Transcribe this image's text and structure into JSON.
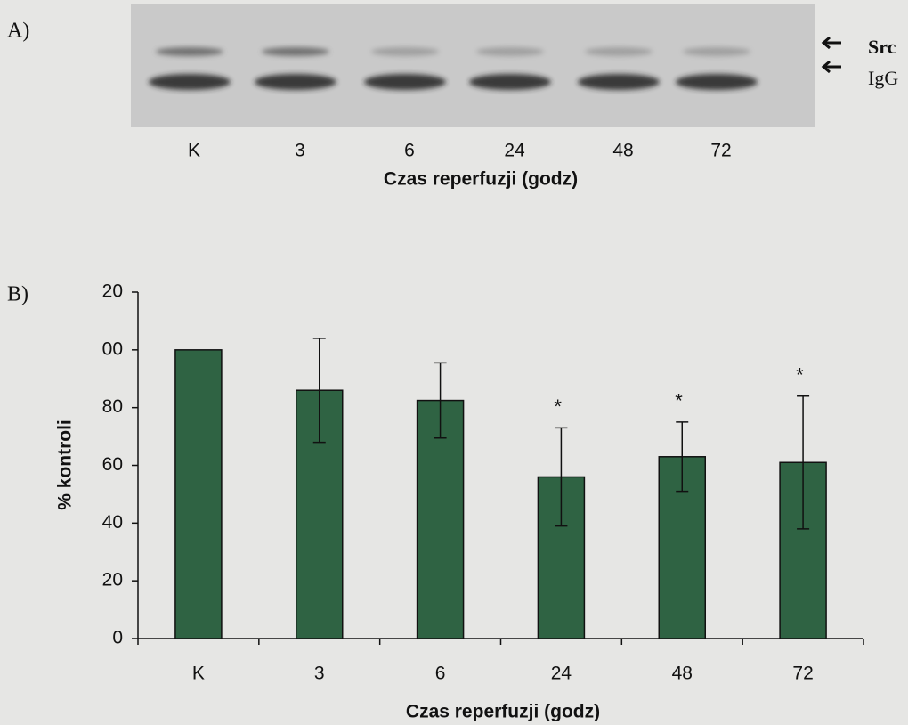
{
  "panel_a": {
    "label": "A)",
    "lanes": [
      "K",
      "3",
      "6",
      "24",
      "48",
      "72"
    ],
    "xlabel": "Czas reperfuzji (godz)",
    "bands": [
      "Src",
      "IgG"
    ]
  },
  "chart_data": {
    "type": "bar",
    "panel_label": "B)",
    "ylabel": "% kontroli",
    "xlabel": "Czas reperfuzji (godz)",
    "categories": [
      "K",
      "3",
      "6",
      "24",
      "48",
      "72"
    ],
    "values": [
      100,
      86,
      82.5,
      56,
      63,
      61
    ],
    "errors": [
      null,
      18,
      13,
      17,
      12,
      23
    ],
    "annotations": [
      null,
      null,
      null,
      "*",
      "*",
      "*"
    ],
    "color": "#2f6343",
    "ylim": [
      0,
      120
    ],
    "yticks": [
      0,
      20,
      40,
      60,
      80,
      {
        "value": 100,
        "label": "00"
      },
      {
        "value": 120,
        "label": "20"
      }
    ]
  }
}
